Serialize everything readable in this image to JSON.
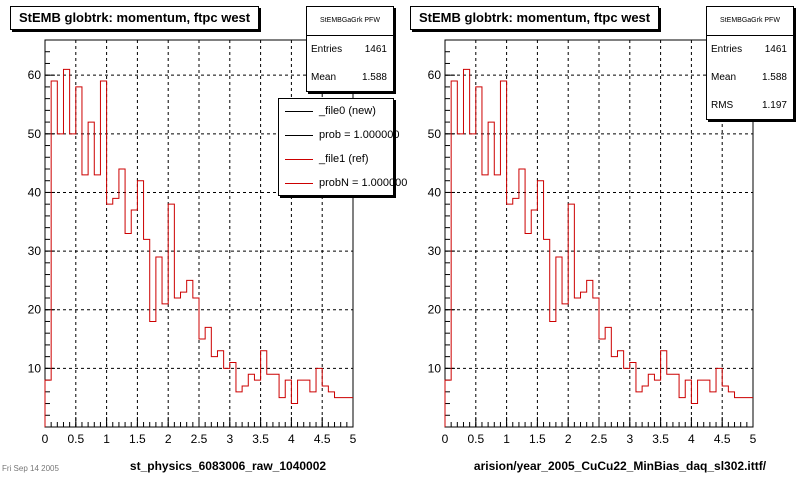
{
  "colors": {
    "new": "#000000",
    "ref": "#cc0000",
    "grid": "#000000"
  },
  "panels": [
    {
      "title": "StEMB globtrk: momentum, ftpc west",
      "stats_title": "StEMBGaGrk PFW",
      "stats": [
        {
          "label": "Entries",
          "value": "1461"
        },
        {
          "label": "Mean",
          "value": "1.588"
        }
      ],
      "legend": [
        {
          "label": "_file0 (new)",
          "color": "#000000"
        },
        {
          "label": "prob = 1.000000",
          "color": "#000000"
        },
        {
          "label": "_file1 (ref)",
          "color": "#cc0000"
        },
        {
          "label": "probN = 1.000000",
          "color": "#cc0000"
        }
      ],
      "xlabel": "st_physics_6083006_raw_1040002"
    },
    {
      "title": "StEMB globtrk: momentum, ftpc west",
      "stats_title": "StEMBGaGrk PFW",
      "stats": [
        {
          "label": "Entries",
          "value": "1461"
        },
        {
          "label": "Mean",
          "value": "1.588"
        },
        {
          "label": "RMS",
          "value": "1.197"
        }
      ],
      "xlabel": "arision/year_2005_CuCu22_MinBias_daq_sl302.ittf/"
    }
  ],
  "chart_data": {
    "type": "histogram",
    "bin_width": 0.1,
    "xlim": [
      0,
      5
    ],
    "ylim": [
      0,
      66
    ],
    "x_ticks": [
      0,
      0.5,
      1,
      1.5,
      2,
      2.5,
      3,
      3.5,
      4,
      4.5,
      5
    ],
    "x_tick_labels": [
      "0",
      "0.5",
      "1",
      "1.5",
      "2",
      "2.5",
      "3",
      "3.5",
      "4",
      "4.5",
      "5"
    ],
    "y_ticks": [
      10,
      20,
      30,
      40,
      50,
      60
    ],
    "y_tick_labels": [
      "10",
      "20",
      "30",
      "40",
      "50",
      "60"
    ],
    "grid": true,
    "series": [
      {
        "name": "_file1 (ref)",
        "values": [
          8,
          59,
          50,
          61,
          50,
          58,
          43,
          52,
          43,
          59,
          38,
          39,
          44,
          33,
          37,
          42,
          32,
          18,
          29,
          21,
          38,
          22,
          23,
          25,
          22,
          15,
          17,
          12,
          13,
          10,
          11,
          6,
          7,
          9,
          8,
          13,
          9,
          9,
          5,
          8,
          4,
          8,
          8,
          6,
          10,
          7,
          6,
          5,
          5,
          5
        ]
      }
    ]
  },
  "footer": {
    "date": "Fri Sep 14 2005"
  }
}
